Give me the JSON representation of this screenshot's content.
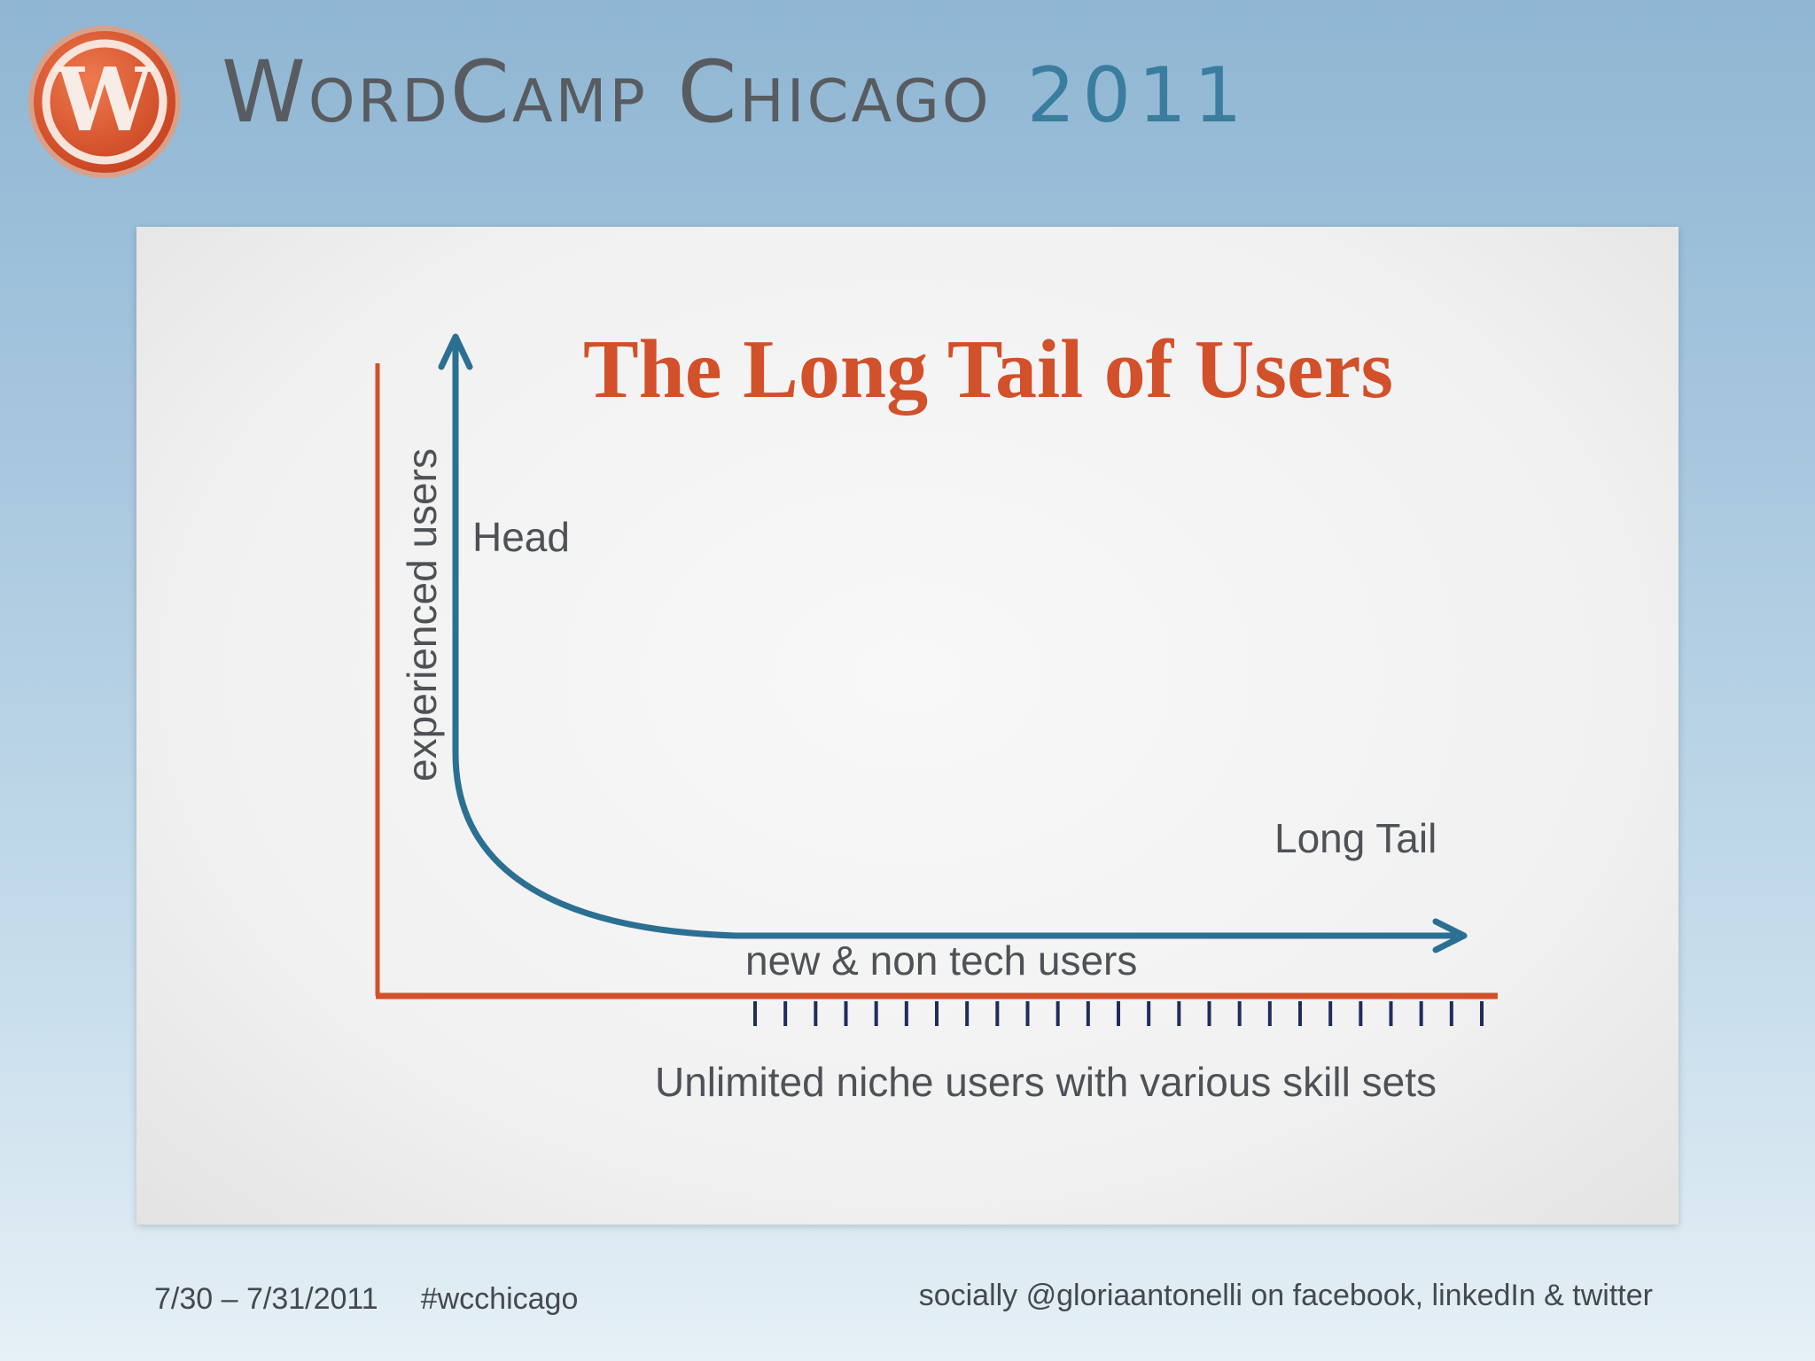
{
  "header": {
    "brand_name": "WordCamp Chicago",
    "brand_year": "2011",
    "logo_letter": "W"
  },
  "slide": {
    "title": "The Long Tail of Users",
    "y_axis_label": "experienced users",
    "head_label": "Head",
    "long_tail_label": "Long Tail",
    "curve_label": "new & non tech users",
    "bottom_caption": "Unlimited niche users with various skill sets",
    "tick_count": 25
  },
  "footer": {
    "dates": "7/30 – 7/31/2011",
    "hashtag": "#wcchicago",
    "social": "socially @gloriaantonelli on facebook, linkedIn & twitter"
  },
  "colors": {
    "title": "#d2502a",
    "axis_orange": "#d2502a",
    "curve_blue": "#2b6f93",
    "ticks": "#1f2d5c",
    "text_gray": "#4e5256",
    "logo_orange": "#d9542b"
  }
}
